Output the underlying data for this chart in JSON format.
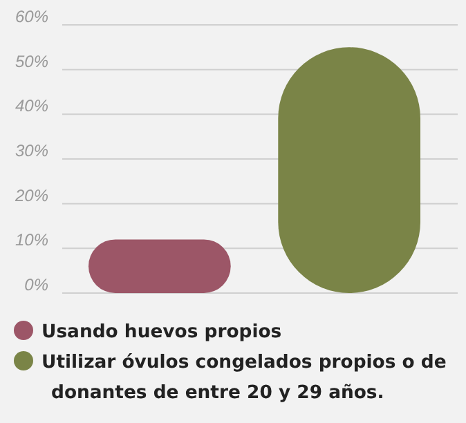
{
  "chart_data": {
    "type": "bar",
    "categories": [
      null,
      null
    ],
    "series": [
      {
        "name": "Usando huevos propios",
        "color": "#9c5667",
        "values": [
          12,
          null
        ]
      },
      {
        "name": "Utilizar óvulos congelados propios o de donantes de entre 20 y 29 años.",
        "color": "#7a8447",
        "values": [
          null,
          55
        ]
      }
    ],
    "ylim": [
      0,
      60
    ],
    "yticks": [
      {
        "value": 0,
        "label": "0%"
      },
      {
        "value": 10,
        "label": "10%"
      },
      {
        "value": 20,
        "label": "20%"
      },
      {
        "value": 30,
        "label": "30%"
      },
      {
        "value": 40,
        "label": "40%"
      },
      {
        "value": 50,
        "label": "50%"
      },
      {
        "value": 60,
        "label": "60%"
      }
    ],
    "grid": "y",
    "legend": "bottom"
  }
}
